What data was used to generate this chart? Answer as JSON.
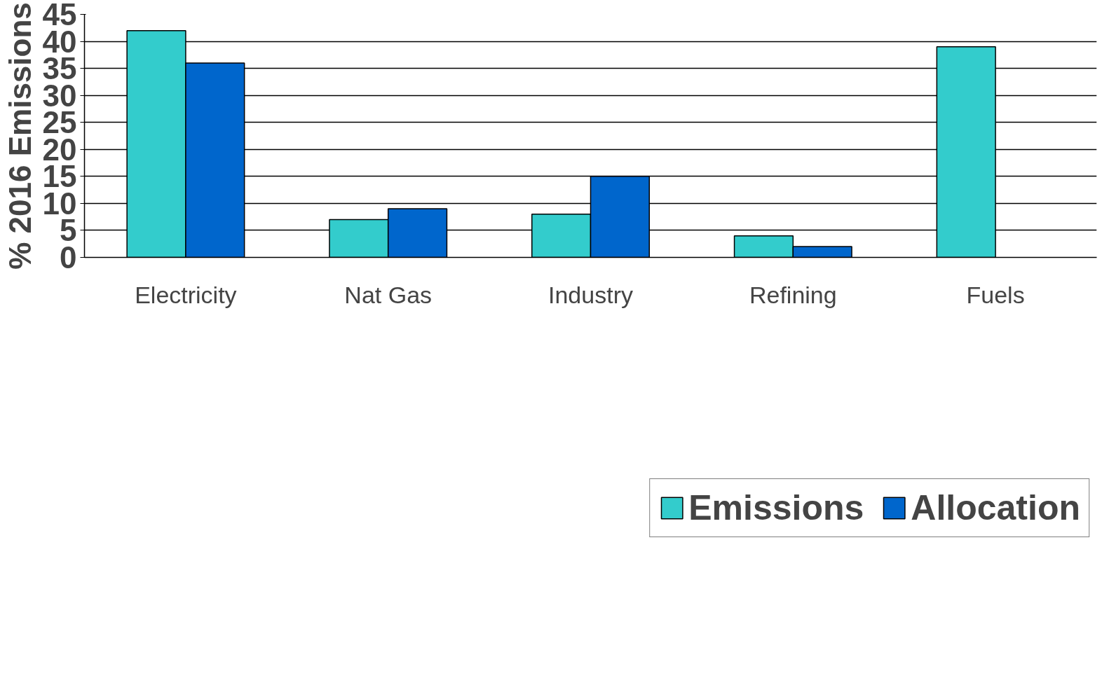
{
  "chart_data": {
    "type": "bar",
    "ylabel": "% 2016 Emissions",
    "categories": [
      "Electricity",
      "Nat Gas",
      "Industry",
      "Refining",
      "Fuels"
    ],
    "series": [
      {
        "name": "Emissions",
        "color": "#33cccc",
        "values": [
          42,
          7,
          8,
          4,
          39
        ]
      },
      {
        "name": "Allocation",
        "color": "#0066cc",
        "values": [
          36,
          9,
          15,
          2,
          null
        ]
      }
    ],
    "ylim": [
      0,
      45
    ],
    "yticks": [
      0,
      5,
      10,
      15,
      20,
      25,
      30,
      35,
      40,
      45
    ],
    "grid": "y",
    "legend": "bottom"
  }
}
